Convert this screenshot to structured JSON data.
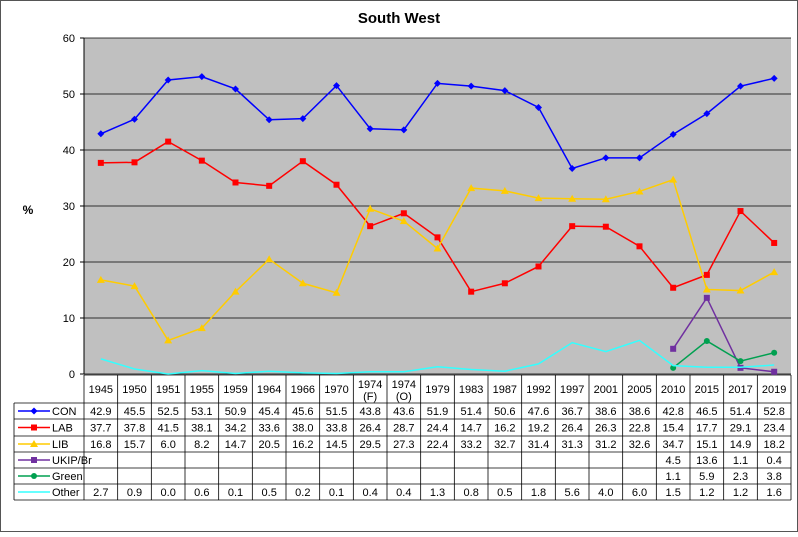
{
  "chart_data": {
    "type": "line",
    "title": "South West",
    "ylabel": "%",
    "xlabel": "",
    "ylim": [
      0,
      60
    ],
    "yticks": [
      0,
      10,
      20,
      30,
      40,
      50,
      60
    ],
    "grid": true,
    "legend_placement": "data-table",
    "plot_background": "#c0c0c0",
    "categories": [
      "1945",
      "1950",
      "1951",
      "1955",
      "1959",
      "1964",
      "1966",
      "1970",
      "1974 (F)",
      "1974 (O)",
      "1979",
      "1983",
      "1987",
      "1992",
      "1997",
      "2001",
      "2005",
      "2010",
      "2015",
      "2017",
      "2019"
    ],
    "series": [
      {
        "name": "CON",
        "color": "#0000ff",
        "marker": "diamond",
        "values": [
          42.9,
          45.5,
          52.5,
          53.1,
          50.9,
          45.4,
          45.6,
          51.5,
          43.8,
          43.6,
          51.9,
          51.4,
          50.6,
          47.6,
          36.7,
          38.6,
          38.6,
          42.8,
          46.5,
          51.4,
          52.8
        ]
      },
      {
        "name": "LAB",
        "color": "#ff0000",
        "marker": "square",
        "values": [
          37.7,
          37.8,
          41.5,
          38.1,
          34.2,
          33.6,
          38.0,
          33.8,
          26.4,
          28.7,
          24.4,
          14.7,
          16.2,
          19.2,
          26.4,
          26.3,
          22.8,
          15.4,
          17.7,
          29.1,
          23.4
        ]
      },
      {
        "name": "LIB",
        "color": "#ffcc00",
        "marker": "triangle",
        "values": [
          16.8,
          15.7,
          6.0,
          8.2,
          14.7,
          20.5,
          16.2,
          14.5,
          29.5,
          27.3,
          22.4,
          33.2,
          32.7,
          31.4,
          31.3,
          31.2,
          32.6,
          34.7,
          15.1,
          14.9,
          18.2
        ]
      },
      {
        "name": "UKIP/Br",
        "color": "#7030a0",
        "marker": "square",
        "values": [
          null,
          null,
          null,
          null,
          null,
          null,
          null,
          null,
          null,
          null,
          null,
          null,
          null,
          null,
          null,
          null,
          null,
          4.5,
          13.6,
          1.1,
          0.4
        ]
      },
      {
        "name": "Green",
        "color": "#00a050",
        "marker": "circle",
        "values": [
          null,
          null,
          null,
          null,
          null,
          null,
          null,
          null,
          null,
          null,
          null,
          null,
          null,
          null,
          null,
          null,
          null,
          1.1,
          5.9,
          2.3,
          3.8
        ]
      },
      {
        "name": "Other",
        "color": "#33ffff",
        "marker": "none",
        "values": [
          2.7,
          0.9,
          0.0,
          0.6,
          0.1,
          0.5,
          0.2,
          0.1,
          0.4,
          0.4,
          1.3,
          0.8,
          0.5,
          1.8,
          5.6,
          4.0,
          6.0,
          1.5,
          1.2,
          1.2,
          1.6
        ]
      }
    ]
  }
}
